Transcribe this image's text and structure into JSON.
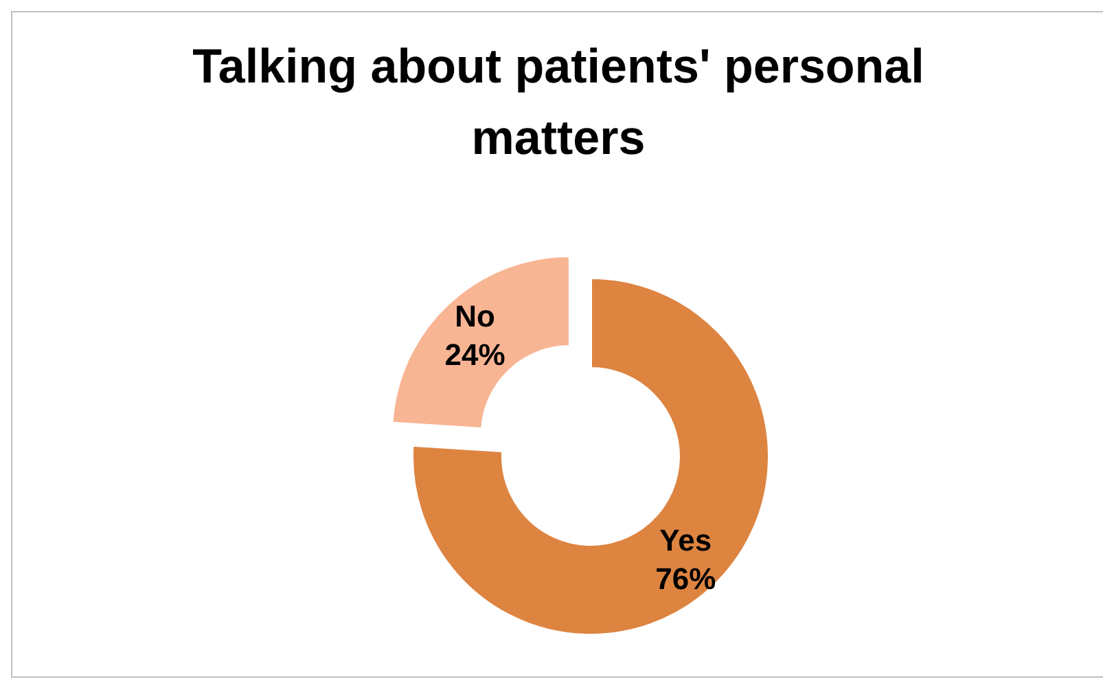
{
  "chart_data": {
    "type": "donut",
    "title": "Talking about patients' personal matters",
    "categories": [
      "Yes",
      "No"
    ],
    "values": [
      76,
      24
    ],
    "colors": [
      "#dd8441",
      "#f8b594"
    ],
    "value_labels": [
      "76%",
      "24%"
    ],
    "data_labels": true
  }
}
